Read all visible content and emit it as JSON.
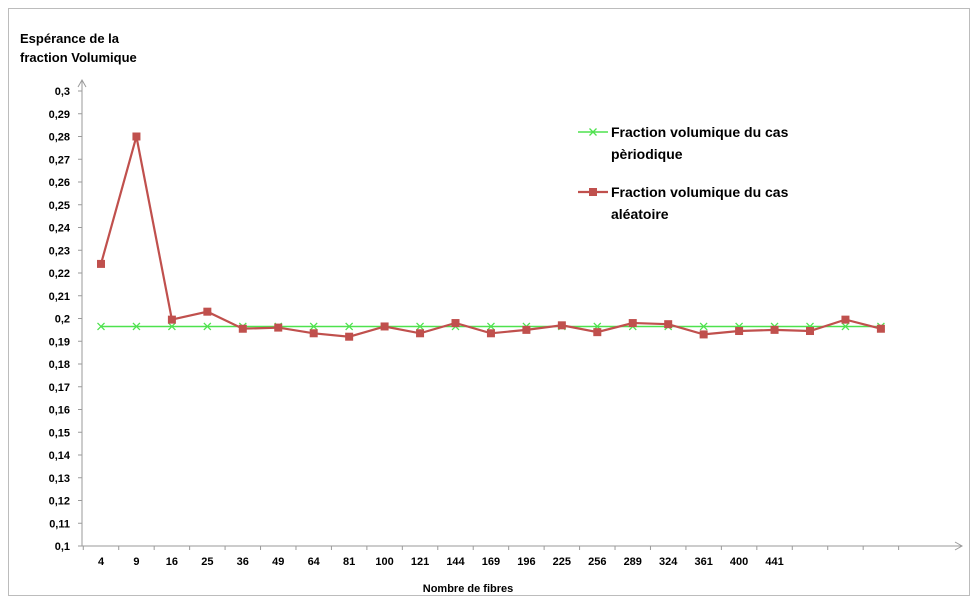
{
  "chart_data": {
    "type": "line",
    "ylabel_lines": [
      "Espérance de la",
      "fraction Volumique"
    ],
    "xlabel": "Nombre de fibres",
    "ylim": [
      0.1,
      0.3
    ],
    "y_ticks": [
      "0,1",
      "0,11",
      "0,12",
      "0,13",
      "0,14",
      "0,15",
      "0,16",
      "0,17",
      "0,18",
      "0,19",
      "0,2",
      "0,21",
      "0,22",
      "0,23",
      "0,24",
      "0,25",
      "0,26",
      "0,27",
      "0,28",
      "0,29",
      "0,3"
    ],
    "categories": [
      "4",
      "9",
      "16",
      "25",
      "36",
      "49",
      "64",
      "81",
      "100",
      "121",
      "144",
      "169",
      "196",
      "225",
      "256",
      "289",
      "324",
      "361",
      "400",
      "441",
      "",
      "",
      ""
    ],
    "grid": false,
    "legend_position": "right",
    "series": [
      {
        "name_lines": [
          "Fraction volumique du cas",
          "pèriodique"
        ],
        "color": "#4ee24e",
        "marker": "x",
        "values": [
          0.1965,
          0.1965,
          0.1965,
          0.1965,
          0.1965,
          0.1965,
          0.1965,
          0.1965,
          0.1965,
          0.1965,
          0.1965,
          0.1965,
          0.1965,
          0.1965,
          0.1965,
          0.1965,
          0.1965,
          0.1965,
          0.1965,
          0.1965,
          0.1965,
          0.1965,
          0.1965
        ]
      },
      {
        "name_lines": [
          "Fraction volumique du cas",
          "aléatoire"
        ],
        "color": "#c0504d",
        "marker": "square",
        "values": [
          0.224,
          0.28,
          0.1995,
          0.203,
          0.1955,
          0.196,
          0.1935,
          0.192,
          0.1965,
          0.1935,
          0.198,
          0.1935,
          0.195,
          0.197,
          0.194,
          0.198,
          0.1975,
          0.193,
          0.1945,
          0.195,
          0.1945,
          0.1995,
          0.1955
        ]
      }
    ]
  }
}
